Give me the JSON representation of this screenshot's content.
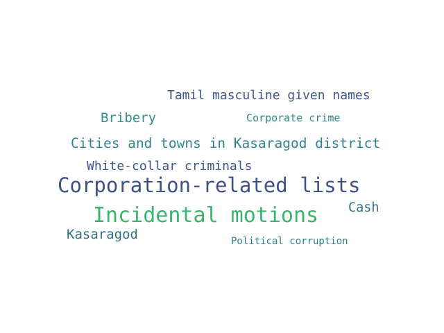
{
  "word_cloud": {
    "words": [
      {
        "text": "Tamil masculine given names",
        "color": "#3f5590"
      },
      {
        "text": "Bribery",
        "color": "#2f9189"
      },
      {
        "text": "Corporate crime",
        "color": "#2f8a8c"
      },
      {
        "text": "Cities and towns in Kasaragod district",
        "color": "#30848f"
      },
      {
        "text": "White-collar criminals",
        "color": "#3f5590"
      },
      {
        "text": "Corporation-related lists",
        "color": "#3e5088"
      },
      {
        "text": "Incidental motions",
        "color": "#3bb56d"
      },
      {
        "text": "Cash",
        "color": "#33718f"
      },
      {
        "text": "Kasaragod",
        "color": "#2e6f8e"
      },
      {
        "text": "Political corruption",
        "color": "#2e7d8d"
      }
    ]
  }
}
